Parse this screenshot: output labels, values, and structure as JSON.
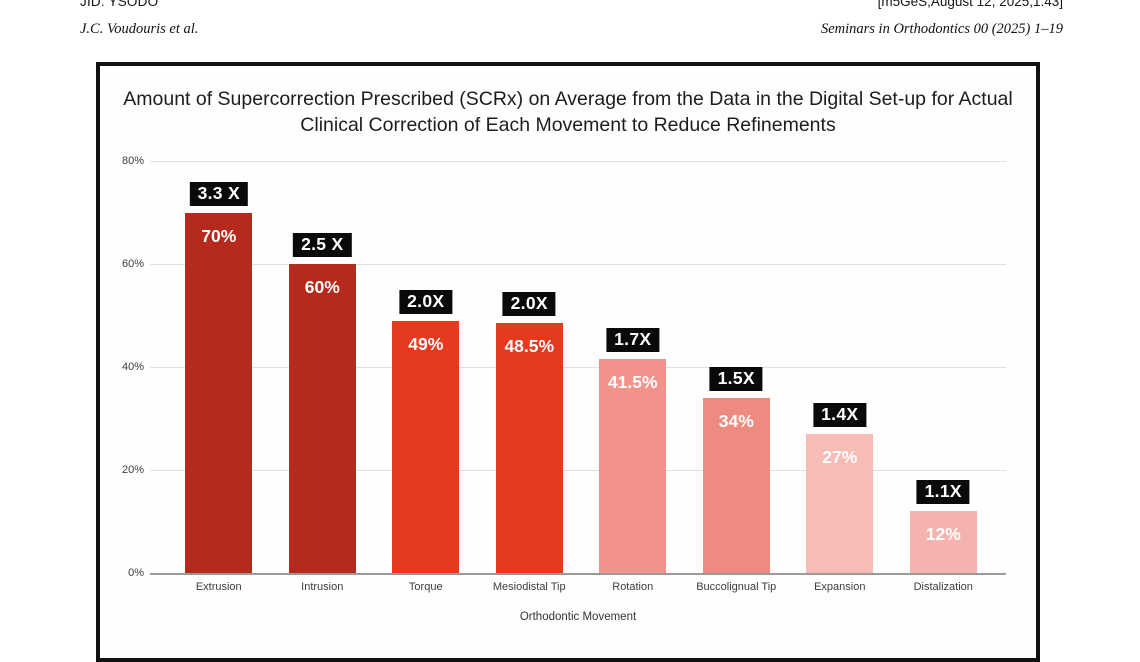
{
  "page": {
    "header": {
      "jid": "JID: YSODO",
      "timestamp_tag": "[m5GeS;August 12, 2025;1:43]",
      "authors": "J.C. Voudouris et al.",
      "journal_ref": "Seminars in Orthodontics 00 (2025) 1–19"
    }
  },
  "chart_data": {
    "type": "bar",
    "title": "Amount of Supercorrection Prescribed (SCRx) on Average from the Data in the Digital Set-up for Actual Clinical Correction of Each Movement to Reduce Refinements",
    "xlabel": "Orthodontic Movement",
    "ylabel": "",
    "ylim": [
      0,
      80
    ],
    "grid": true,
    "legend_position": "none",
    "yticks": {
      "values": [
        80,
        60,
        40,
        20,
        0
      ],
      "labels": [
        "80%",
        "60%",
        "40%",
        "20%",
        "0%"
      ]
    },
    "categories": [
      "Extrusion",
      "Intrusion",
      "Torque",
      "Mesiodistal Tip",
      "Rotation",
      "Buccolignual Tip",
      "Expansion",
      "Distalization"
    ],
    "values": [
      70,
      60,
      49,
      48.5,
      41.5,
      34,
      27,
      12
    ],
    "value_labels": [
      "70%",
      "60%",
      "49%",
      "48.5%",
      "41.5%",
      "34%",
      "27%",
      "12%"
    ],
    "multiplier_labels": [
      "3.3 X",
      "2.5 X",
      "2.0X",
      "2.0X",
      "1.7X",
      "1.5X",
      "1.4X",
      "1.1X"
    ],
    "bar_colors": [
      "#b52a1c",
      "#b52a1c",
      "#e63a1e",
      "#e63a1e",
      "#f2938b",
      "#ee8b80",
      "#f6bcb5",
      "#f4b3ae"
    ],
    "colors": {
      "label_box_bg": "#0a0a0a",
      "label_text": "#ffffff",
      "bar_value_text": "#ffffff",
      "gridline": "#e0e0e0",
      "axis_line": "#9a9a9a"
    }
  }
}
